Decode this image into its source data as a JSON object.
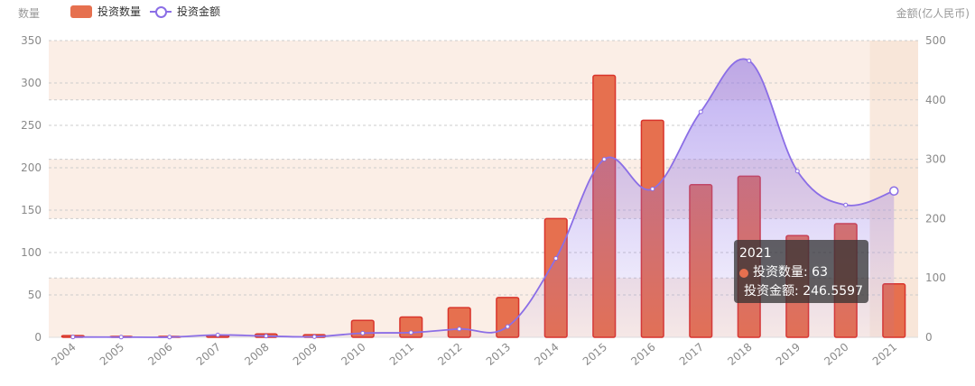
{
  "colors": {
    "bar": "#e6704f",
    "bar_border": "#d9342b",
    "line": "#8b6ee6",
    "band": "#fbeee6",
    "hover_band": "#f8e3d6",
    "grid": "#cccccc",
    "tooltip_bar_dot": "#e6704f",
    "tooltip_line_dot": "#a487f0"
  },
  "legend": {
    "bar_label": "投资数量",
    "line_label": "投资金额"
  },
  "axis_titles": {
    "left": "数量",
    "right": "金额(亿人民币)"
  },
  "tooltip": {
    "title": "2021",
    "bar_line": "投资数量: 63",
    "line_line": "投资金额: 246.5597"
  },
  "chart_data": {
    "type": "bar",
    "categories": [
      "2004",
      "2005",
      "2006",
      "2007",
      "2008",
      "2009",
      "2010",
      "2011",
      "2012",
      "2013",
      "2014",
      "2015",
      "2016",
      "2017",
      "2018",
      "2019",
      "2020",
      "2021"
    ],
    "series": [
      {
        "name": "投资数量",
        "type": "bar",
        "axis": "left",
        "values": [
          2,
          1,
          1,
          2,
          4,
          3,
          20,
          24,
          35,
          47,
          140,
          309,
          256,
          180,
          190,
          120,
          134,
          63
        ]
      },
      {
        "name": "投资金额",
        "type": "line",
        "axis": "right",
        "smooth": true,
        "area": true,
        "values": [
          0.5,
          0.3,
          0.3,
          4,
          2,
          1,
          7,
          8,
          14,
          18,
          133,
          300,
          250,
          380,
          466,
          280,
          223,
          246.5597
        ]
      }
    ],
    "y_left": {
      "ylim": [
        0,
        350
      ],
      "ticks": [
        0,
        50,
        100,
        150,
        200,
        250,
        300,
        350
      ]
    },
    "y_right": {
      "ylim": [
        0,
        500
      ],
      "ticks": [
        0,
        100,
        200,
        300,
        400,
        500
      ]
    },
    "highlighted_category": "2021",
    "grid": true,
    "legend_position": "top-left"
  }
}
